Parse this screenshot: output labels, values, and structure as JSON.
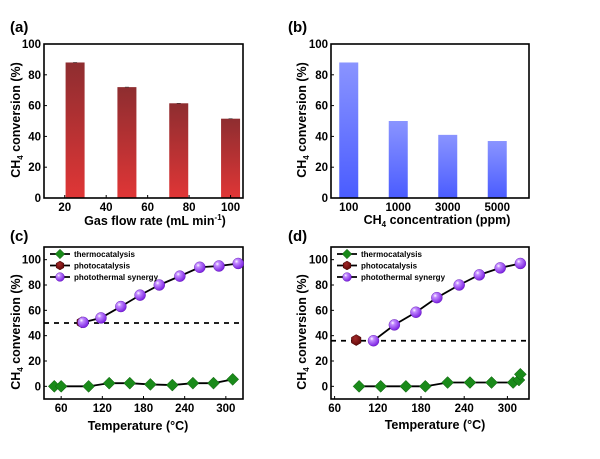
{
  "chart_data": [
    {
      "id": "a",
      "type": "bar",
      "panel_label": "(a)",
      "title": "",
      "xlabel": "Gas flow rate (mL min",
      "xlabel_sup": "-1",
      "xlabel_tail": ")",
      "ylabel": "CH",
      "ylabel_sub": "4",
      "ylabel_tail": " conversion (%)",
      "x": [
        25,
        50,
        75,
        100
      ],
      "values": [
        88,
        72,
        61.5,
        51.5
      ],
      "xlim": [
        10,
        106
      ],
      "ylim": [
        0,
        100
      ],
      "xticks": [
        20,
        40,
        60,
        80,
        100
      ],
      "yticks": [
        0,
        20,
        40,
        60,
        80,
        100
      ],
      "colors": {
        "top": "#8e2d30",
        "bottom": "#e03636"
      },
      "grid": false
    },
    {
      "id": "b",
      "type": "bar",
      "panel_label": "(b)",
      "title": "",
      "xlabel": "CH",
      "xlabel_sub": "4",
      "xlabel_tail": " concentration (ppm)",
      "ylabel": "CH",
      "ylabel_sub": "4",
      "ylabel_tail": " conversion (%)",
      "categories": [
        "100",
        "1000",
        "3000",
        "5000"
      ],
      "values": [
        88,
        50,
        41,
        37
      ],
      "ylim": [
        0,
        100
      ],
      "yticks": [
        0,
        20,
        40,
        60,
        80,
        100
      ],
      "colors": {
        "top": "#8a94ff",
        "bottom": "#4a5cff"
      },
      "grid": false
    },
    {
      "id": "c",
      "type": "line",
      "panel_label": "(c)",
      "title": "",
      "xlabel": "Temperature (°C)",
      "ylabel": "CH",
      "ylabel_sub": "4",
      "ylabel_tail": " conversion (%)",
      "xlim": [
        35,
        325
      ],
      "ylim": [
        -10,
        110
      ],
      "xticks": [
        60,
        120,
        180,
        240,
        300
      ],
      "yticks": [
        0,
        20,
        40,
        60,
        80,
        100
      ],
      "reference_line": 50,
      "legend_position": "top-left",
      "series": [
        {
          "name": "thermocatalysis",
          "marker": "diamond",
          "color": "#1a8a1a",
          "x": [
            50,
            60,
            100,
            130,
            160,
            190,
            222,
            252,
            282,
            310
          ],
          "y": [
            0,
            0,
            0,
            2.5,
            2.5,
            1.5,
            1,
            2.5,
            2.5,
            5.5
          ]
        },
        {
          "name": "photocatalysis",
          "marker": "hexagon",
          "color": "#7a0c0c",
          "x": [
            90
          ],
          "y": [
            50.5
          ]
        },
        {
          "name": "photothermal synergy",
          "marker": "sphere",
          "color": "#9b3df5",
          "x": [
            92,
            118,
            147,
            175,
            203,
            233,
            262,
            290,
            318
          ],
          "y": [
            50.5,
            54,
            63,
            72,
            80,
            87,
            94,
            95,
            97
          ]
        }
      ],
      "grid": false
    },
    {
      "id": "d",
      "type": "line",
      "panel_label": "(d)",
      "title": "",
      "xlabel": "Temperature (°C)",
      "ylabel": "CH",
      "ylabel_sub": "4",
      "ylabel_tail": " conversion (%)",
      "xlim": [
        55,
        330
      ],
      "ylim": [
        -10,
        110
      ],
      "xticks": [
        60,
        120,
        180,
        240,
        300
      ],
      "yticks": [
        0,
        20,
        40,
        60,
        80,
        100
      ],
      "reference_line": 36,
      "legend_position": "top-left",
      "series": [
        {
          "name": "thermocatalysis",
          "marker": "diamond",
          "color": "#1a8a1a",
          "x": [
            94,
            124,
            159,
            186,
            217,
            248,
            278,
            308,
            316,
            318
          ],
          "y": [
            0,
            0,
            0,
            0,
            3,
            3,
            3,
            3,
            5,
            9.5
          ]
        },
        {
          "name": "photocatalysis",
          "marker": "hexagon",
          "color": "#7a0c0c",
          "x": [
            90
          ],
          "y": [
            36.5
          ]
        },
        {
          "name": "photothermal synergy",
          "marker": "sphere",
          "color": "#9b3df5",
          "x": [
            114,
            143,
            173,
            202,
            233,
            261,
            290,
            318
          ],
          "y": [
            36,
            48.5,
            58.5,
            70,
            80,
            88,
            93.5,
            97
          ]
        }
      ],
      "grid": false
    }
  ]
}
